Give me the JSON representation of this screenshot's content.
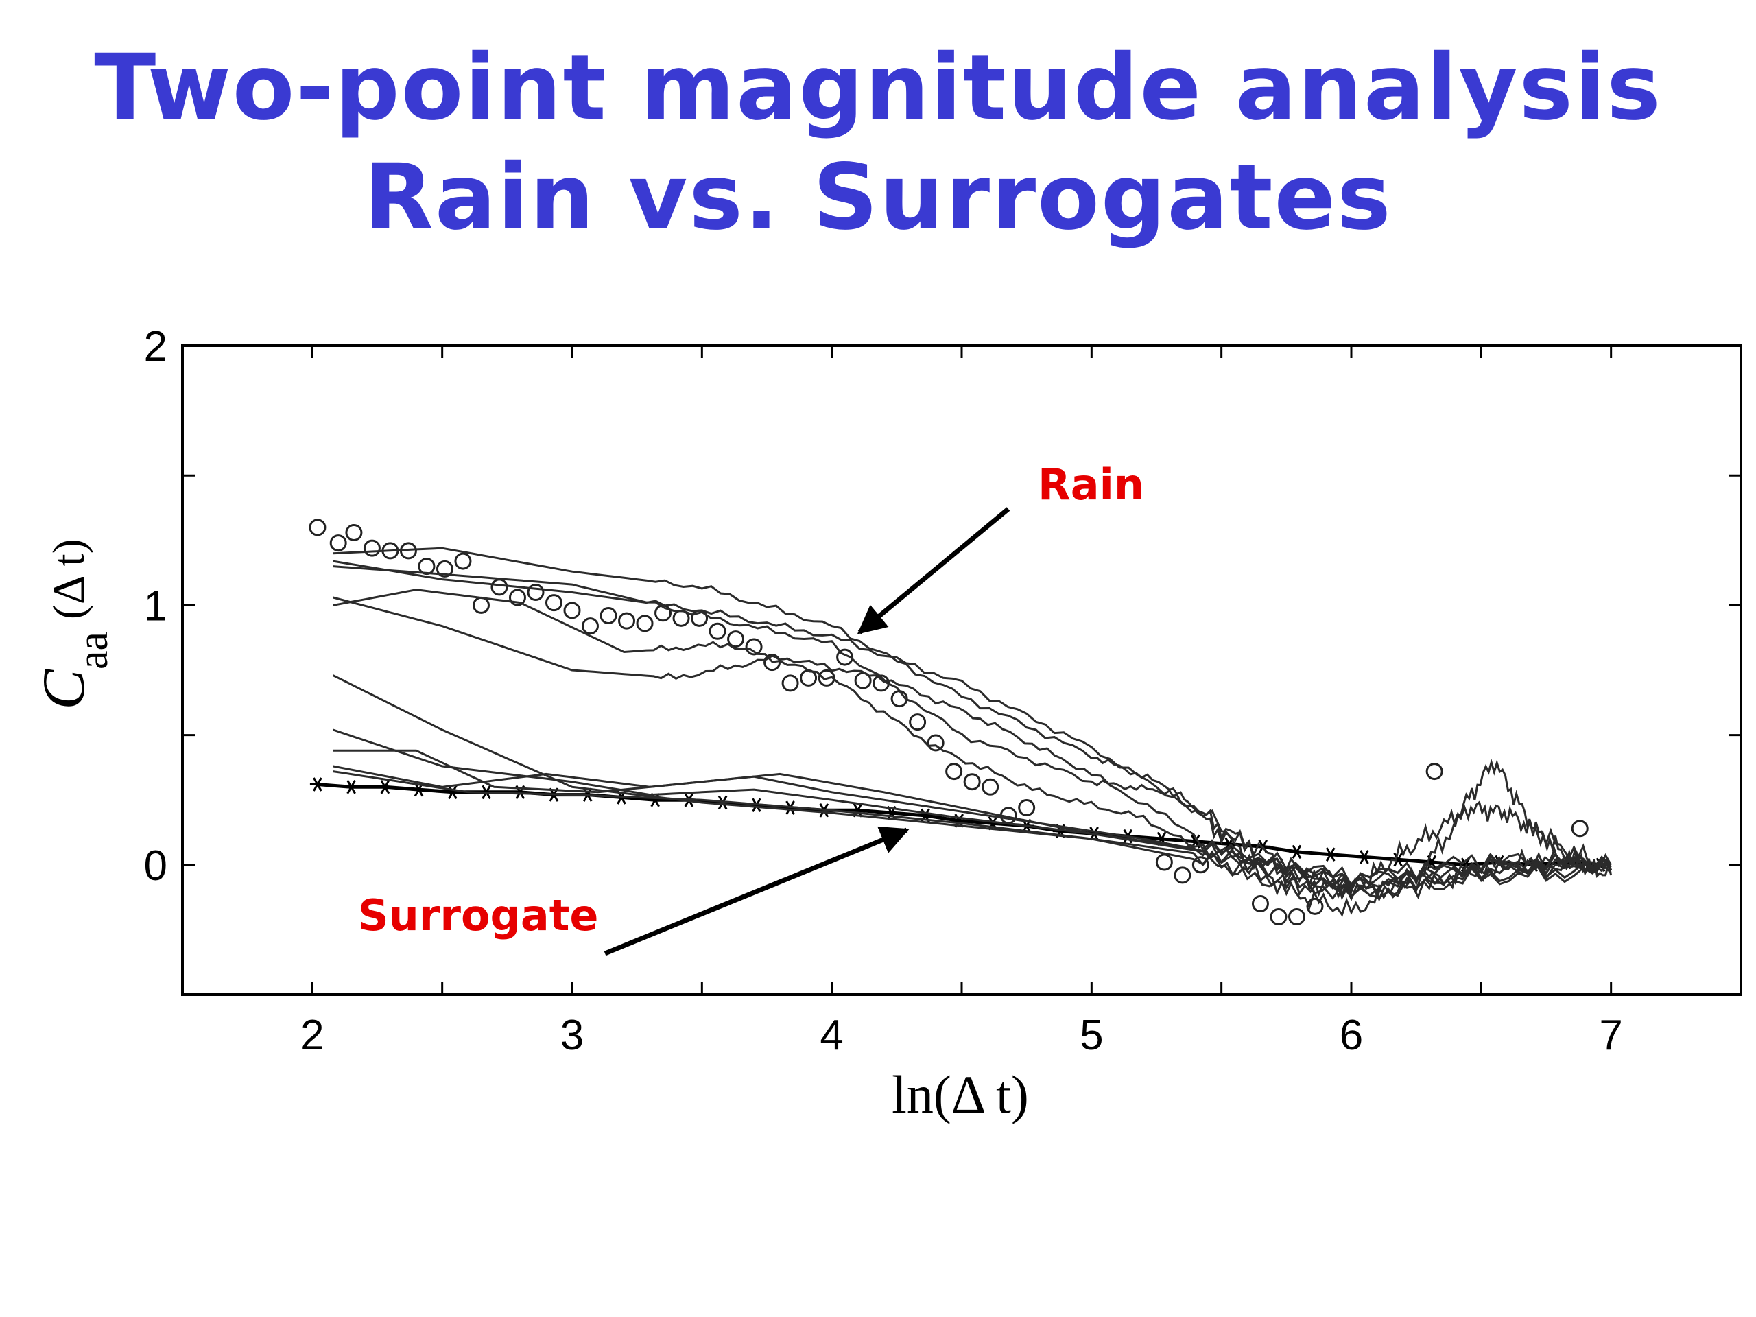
{
  "slide": {
    "title_line1": "Two-point magnitude analysis",
    "title_line2": "Rain vs. Surrogates"
  },
  "chart_data": {
    "type": "line",
    "xlabel_func": "ln(",
    "xlabel_var": "Δ t",
    "xlabel_close": ")",
    "ylabel_main": "C",
    "ylabel_sub": "aa",
    "ylabel_arg": "(Δ t)",
    "xlim": [
      1.5,
      7.5
    ],
    "ylim": [
      -0.5,
      2
    ],
    "x_ticks": [
      2,
      3,
      4,
      5,
      6,
      7
    ],
    "y_ticks": [
      0,
      1,
      2
    ],
    "grid": false,
    "annotations": [
      {
        "label": "Rain",
        "color": "#e60000"
      },
      {
        "label": "Surrogate",
        "color": "#e60000"
      }
    ],
    "series": [
      {
        "marker": "circle",
        "x": [
          2.02,
          2.1,
          2.16,
          2.23,
          2.3,
          2.37,
          2.44,
          2.51,
          2.58,
          2.65,
          2.72,
          2.79,
          2.86,
          2.93,
          3.0,
          3.07,
          3.14,
          3.21,
          3.28,
          3.35,
          3.42,
          3.49,
          3.56,
          3.63,
          3.7,
          3.77,
          3.84,
          3.91,
          3.98,
          4.05,
          4.12,
          4.19,
          4.26,
          4.33,
          4.4,
          4.47,
          4.54,
          4.61,
          4.68,
          4.75,
          5.28,
          5.35,
          5.42,
          5.65,
          5.72,
          5.79,
          5.86,
          6.32,
          6.88
        ],
        "values": [
          1.3,
          1.24,
          1.28,
          1.22,
          1.21,
          1.21,
          1.15,
          1.14,
          1.17,
          1.0,
          1.07,
          1.03,
          1.05,
          1.01,
          0.98,
          0.92,
          0.96,
          0.94,
          0.93,
          0.97,
          0.95,
          0.95,
          0.9,
          0.87,
          0.84,
          0.78,
          0.7,
          0.72,
          0.72,
          0.8,
          0.71,
          0.7,
          0.64,
          0.55,
          0.47,
          0.36,
          0.32,
          0.3,
          0.19,
          0.22,
          0.01,
          -0.04,
          0.0,
          -0.15,
          -0.2,
          -0.2,
          -0.16,
          0.36,
          0.14
        ]
      },
      {
        "marker": "asterisk",
        "x": [
          2.02,
          2.15,
          2.28,
          2.41,
          2.54,
          2.67,
          2.8,
          2.93,
          3.06,
          3.19,
          3.32,
          3.45,
          3.58,
          3.71,
          3.84,
          3.97,
          4.1,
          4.23,
          4.36,
          4.49,
          4.62,
          4.75,
          4.88,
          5.01,
          5.14,
          5.27,
          5.4,
          5.53,
          5.66,
          5.79,
          5.92,
          6.05,
          6.18,
          6.31,
          6.44,
          6.57,
          6.7,
          6.83,
          6.96
        ],
        "values": [
          0.31,
          0.3,
          0.3,
          0.29,
          0.28,
          0.28,
          0.28,
          0.27,
          0.27,
          0.26,
          0.25,
          0.25,
          0.24,
          0.23,
          0.22,
          0.21,
          0.21,
          0.2,
          0.19,
          0.17,
          0.16,
          0.15,
          0.13,
          0.12,
          0.11,
          0.1,
          0.09,
          0.08,
          0.07,
          0.05,
          0.04,
          0.03,
          0.02,
          0.01,
          0.0,
          0.01,
          0.0,
          0.01,
          0.0
        ]
      },
      {
        "marker": "none",
        "x": [
          2.08,
          2.5,
          3.0,
          3.5,
          4.0,
          4.5,
          5.0,
          5.5,
          5.75,
          6.0,
          6.3,
          6.55,
          6.8,
          7.0
        ],
        "values": [
          1.17,
          1.1,
          1.05,
          0.98,
          0.88,
          0.7,
          0.45,
          0.15,
          -0.05,
          -0.1,
          -0.08,
          0.0,
          0.02,
          -0.02
        ]
      },
      {
        "marker": "none",
        "x": [
          2.08,
          2.5,
          3.0,
          3.5,
          4.0,
          4.5,
          5.0,
          5.3,
          5.5,
          5.75,
          6.0,
          6.2,
          6.4,
          6.55,
          6.7,
          6.85,
          7.0
        ],
        "values": [
          1.2,
          1.22,
          1.13,
          1.07,
          0.92,
          0.65,
          0.42,
          0.3,
          0.14,
          0.0,
          -0.1,
          0.05,
          0.18,
          0.4,
          0.14,
          0.02,
          -0.04
        ]
      },
      {
        "marker": "none",
        "x": [
          2.08,
          2.5,
          3.0,
          3.5,
          4.0,
          4.5,
          5.0,
          5.3,
          5.5,
          5.75,
          6.0,
          6.25,
          6.45,
          6.6,
          6.75,
          7.0
        ],
        "values": [
          1.15,
          1.12,
          1.08,
          0.96,
          0.85,
          0.5,
          0.32,
          0.28,
          0.12,
          -0.1,
          -0.18,
          -0.05,
          0.22,
          0.2,
          0.1,
          -0.02
        ]
      },
      {
        "marker": "none",
        "x": [
          2.08,
          2.5,
          3.0,
          3.4,
          3.8,
          4.2,
          4.6,
          5.0,
          5.5,
          6.0,
          6.5,
          7.0
        ],
        "values": [
          1.03,
          0.92,
          0.75,
          0.72,
          0.8,
          0.72,
          0.55,
          0.35,
          0.06,
          -0.12,
          -0.05,
          -0.03
        ]
      },
      {
        "marker": "none",
        "x": [
          2.08,
          2.4,
          2.8,
          3.2,
          3.6,
          4.0,
          4.4,
          4.8,
          5.2,
          5.6,
          6.0,
          6.5,
          7.0
        ],
        "values": [
          1.0,
          1.06,
          1.01,
          0.82,
          0.85,
          0.72,
          0.45,
          0.28,
          0.18,
          -0.05,
          -0.1,
          -0.02,
          0.0
        ]
      },
      {
        "marker": "none",
        "x": [
          2.08,
          2.5,
          3.0,
          3.5,
          4.0,
          4.5,
          5.0,
          5.5,
          6.0,
          6.5,
          7.0
        ],
        "values": [
          0.73,
          0.52,
          0.3,
          0.24,
          0.2,
          0.15,
          0.1,
          0.03,
          -0.07,
          -0.04,
          -0.01
        ]
      },
      {
        "marker": "none",
        "x": [
          2.08,
          2.5,
          3.0,
          3.3,
          3.7,
          4.0,
          4.5,
          5.0,
          5.5,
          6.0,
          6.5,
          7.0
        ],
        "values": [
          0.52,
          0.38,
          0.32,
          0.27,
          0.29,
          0.25,
          0.18,
          0.12,
          0.05,
          -0.06,
          0.02,
          0.0
        ]
      },
      {
        "marker": "none",
        "x": [
          2.08,
          2.4,
          2.7,
          3.1,
          3.5,
          3.8,
          4.2,
          4.6,
          5.0,
          5.5,
          6.0,
          6.5,
          7.0
        ],
        "values": [
          0.44,
          0.44,
          0.3,
          0.28,
          0.32,
          0.35,
          0.28,
          0.2,
          0.12,
          0.04,
          -0.05,
          0.0,
          0.0
        ]
      },
      {
        "marker": "none",
        "x": [
          2.08,
          2.5,
          2.9,
          3.3,
          3.7,
          4.0,
          4.4,
          4.8,
          5.2,
          5.6,
          6.0,
          6.5,
          7.0
        ],
        "values": [
          0.38,
          0.3,
          0.35,
          0.3,
          0.34,
          0.28,
          0.22,
          0.16,
          0.1,
          0.02,
          -0.06,
          0.0,
          0.0
        ]
      },
      {
        "marker": "none",
        "x": [
          2.08,
          2.6,
          3.0,
          3.5,
          4.0,
          4.5,
          5.0,
          5.5,
          5.8,
          6.1,
          6.4,
          6.7,
          7.0
        ],
        "values": [
          0.36,
          0.28,
          0.27,
          0.25,
          0.21,
          0.16,
          0.1,
          0.0,
          -0.08,
          -0.08,
          -0.04,
          0.0,
          0.0
        ]
      }
    ]
  }
}
